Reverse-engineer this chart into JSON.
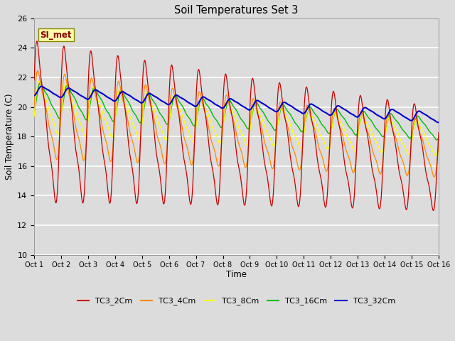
{
  "title": "Soil Temperatures Set 3",
  "xlabel": "Time",
  "ylabel": "Soil Temperature (C)",
  "ylim": [
    10,
    26
  ],
  "xlim": [
    0,
    15
  ],
  "x_tick_labels": [
    "Oct 1",
    "Oct 2",
    "Oct 3",
    "Oct 4",
    "Oct 5",
    "Oct 6",
    "Oct 7",
    "Oct 8",
    "Oct 9",
    "Oct 10",
    "Oct 11",
    "Oct 12",
    "Oct 13",
    "Oct 14",
    "Oct 15",
    "Oct 16"
  ],
  "background_color": "#dcdcdc",
  "plot_bg_color": "#dcdcdc",
  "grid_color": "#ffffff",
  "series_colors": {
    "TC3_2Cm": "#cc0000",
    "TC3_4Cm": "#ff8800",
    "TC3_8Cm": "#ffff00",
    "TC3_16Cm": "#00bb00",
    "TC3_32Cm": "#0000cc"
  },
  "annotation_text": "SI_met",
  "annotation_color": "#880000",
  "annotation_bg": "#ffffaa",
  "annotation_border": "#888800",
  "figsize": [
    6.4,
    4.8
  ],
  "dpi": 100
}
